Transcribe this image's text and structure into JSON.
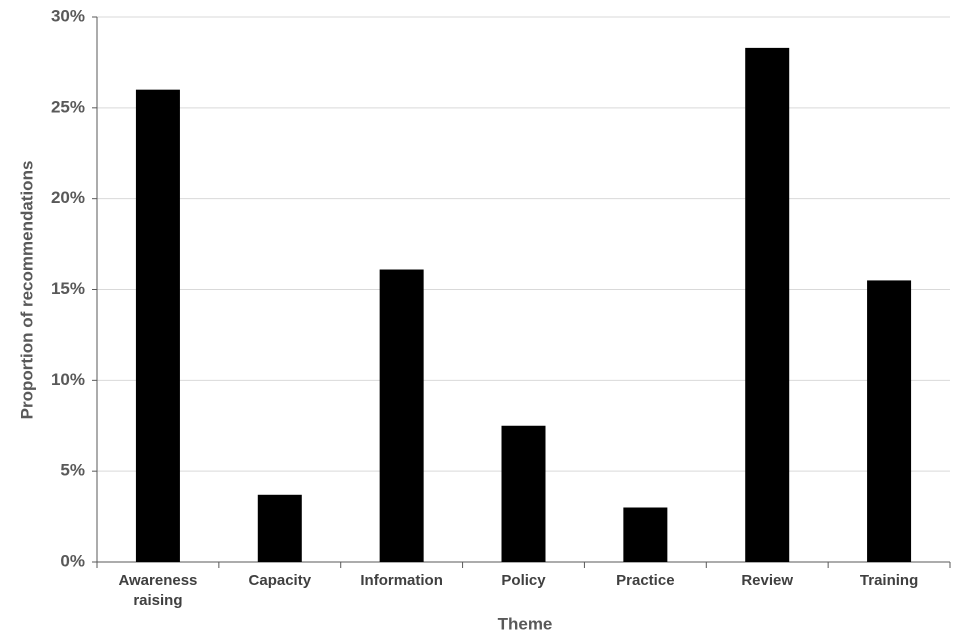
{
  "chart_data": {
    "type": "bar",
    "x_label": "Theme",
    "y_label": "Proportion of recommendations",
    "categories": [
      "Awareness raising",
      "Capacity",
      "Information",
      "Policy",
      "Practice",
      "Review",
      "Training"
    ],
    "values": [
      26.0,
      3.7,
      16.1,
      7.5,
      3.0,
      28.3,
      15.5
    ],
    "color": "#000000",
    "ylim": [
      0,
      30
    ],
    "yticks": [
      {
        "value": 0,
        "label": "0%"
      },
      {
        "value": 5,
        "label": "5%"
      },
      {
        "value": 10,
        "label": "10%"
      },
      {
        "value": 15,
        "label": "15%"
      },
      {
        "value": 20,
        "label": "20%"
      },
      {
        "value": 25,
        "label": "25%"
      },
      {
        "value": 30,
        "label": "30%"
      }
    ],
    "grid": true
  }
}
